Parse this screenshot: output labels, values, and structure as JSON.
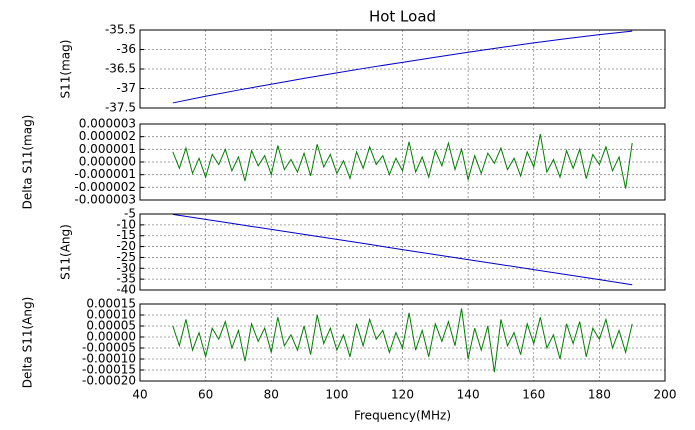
{
  "chart_data": [
    {
      "type": "line",
      "title": "Hot Load",
      "ylabel": "S11(mag)",
      "color": "#0000cc",
      "x": [
        50,
        60,
        70,
        80,
        90,
        100,
        110,
        120,
        130,
        140,
        150,
        160,
        170,
        180,
        190
      ],
      "values": [
        -37.37,
        -37.2,
        -37.04,
        -36.89,
        -36.74,
        -36.6,
        -36.46,
        -36.33,
        -36.2,
        -36.07,
        -35.95,
        -35.83,
        -35.72,
        -35.62,
        -35.53
      ],
      "xlim": [
        40,
        200
      ],
      "xticks": [
        40,
        60,
        80,
        100,
        120,
        140,
        160,
        180,
        200
      ],
      "ylim": [
        -37.5,
        -35.5
      ],
      "yticks": [
        -37.5,
        -37,
        -36.5,
        -36,
        -35.5
      ],
      "grid": true
    },
    {
      "type": "line",
      "ylabel": "Delta S11(mag)",
      "color": "#007f00",
      "x": [
        50,
        52,
        54,
        56,
        58,
        60,
        62,
        64,
        66,
        68,
        70,
        72,
        74,
        76,
        78,
        80,
        82,
        84,
        86,
        88,
        90,
        92,
        94,
        96,
        98,
        100,
        102,
        104,
        106,
        108,
        110,
        112,
        114,
        116,
        118,
        120,
        122,
        124,
        126,
        128,
        130,
        132,
        134,
        136,
        138,
        140,
        142,
        144,
        146,
        148,
        150,
        152,
        154,
        156,
        158,
        160,
        162,
        164,
        166,
        168,
        170,
        172,
        174,
        176,
        178,
        180,
        182,
        184,
        186,
        188,
        190
      ],
      "values": [
        8e-07,
        -5e-07,
        1.1e-06,
        -9e-07,
        3e-07,
        -1.2e-06,
        6e-07,
        -2e-07,
        1e-06,
        -7e-07,
        4e-07,
        -1.5e-06,
        9e-07,
        -3e-07,
        5e-07,
        -1e-06,
        1.3e-06,
        -6e-07,
        2e-07,
        -8e-07,
        7e-07,
        -1.1e-06,
        1.4e-06,
        -4e-07,
        6e-07,
        -9e-07,
        1e-07,
        -1.3e-06,
        8e-07,
        -5e-07,
        1.2e-06,
        -2e-07,
        5e-07,
        -1e-06,
        3e-07,
        -7e-07,
        1.6e-06,
        -8e-07,
        4e-07,
        -1.2e-06,
        9e-07,
        -3e-07,
        1.5e-06,
        -6e-07,
        1e-06,
        -1.4e-06,
        5e-07,
        -9e-07,
        7e-07,
        -1e-07,
        1.1e-06,
        -6e-07,
        3e-07,
        -1.1e-06,
        8e-07,
        -4e-07,
        2.2e-06,
        -8e-07,
        2e-07,
        -1.2e-06,
        9e-07,
        -5e-07,
        1e-06,
        -1.3e-06,
        6e-07,
        -2e-07,
        1.2e-06,
        -7e-07,
        4e-07,
        -2.1e-06,
        1.5e-06
      ],
      "xlim": [
        40,
        200
      ],
      "xticks": [
        40,
        60,
        80,
        100,
        120,
        140,
        160,
        180,
        200
      ],
      "ylim": [
        -3e-06,
        3e-06
      ],
      "yticks": [
        {
          "value": -3e-06,
          "label": "-0.000003"
        },
        {
          "value": -2e-06,
          "label": "-0.000002"
        },
        {
          "value": -1e-06,
          "label": "-0.000001"
        },
        {
          "value": 0,
          "label": "0.000000"
        },
        {
          "value": 1e-06,
          "label": "0.000001"
        },
        {
          "value": 2e-06,
          "label": "0.000002"
        },
        {
          "value": 3e-06,
          "label": "0.000003"
        }
      ],
      "grid": true
    },
    {
      "type": "line",
      "ylabel": "S11(Ang)",
      "color": "#0000cc",
      "x": [
        50,
        60,
        70,
        80,
        90,
        100,
        110,
        120,
        130,
        140,
        150,
        160,
        170,
        180,
        190
      ],
      "values": [
        -5.2,
        -7.5,
        -9.8,
        -12.1,
        -14.4,
        -16.7,
        -19,
        -21.4,
        -23.7,
        -26,
        -28.3,
        -30.6,
        -32.9,
        -35.2,
        -37.6
      ],
      "xlim": [
        40,
        200
      ],
      "xticks": [
        40,
        60,
        80,
        100,
        120,
        140,
        160,
        180,
        200
      ],
      "ylim": [
        -40,
        -5
      ],
      "yticks": [
        -40,
        -35,
        -30,
        -25,
        -20,
        -15,
        -10,
        -5
      ],
      "grid": true
    },
    {
      "type": "line",
      "ylabel": "Delta S11(Ang)",
      "xlabel": "Frequency(MHz)",
      "color": "#007f00",
      "x": [
        50,
        52,
        54,
        56,
        58,
        60,
        62,
        64,
        66,
        68,
        70,
        72,
        74,
        76,
        78,
        80,
        82,
        84,
        86,
        88,
        90,
        92,
        94,
        96,
        98,
        100,
        102,
        104,
        106,
        108,
        110,
        112,
        114,
        116,
        118,
        120,
        122,
        124,
        126,
        128,
        130,
        132,
        134,
        136,
        138,
        140,
        142,
        144,
        146,
        148,
        150,
        152,
        154,
        156,
        158,
        160,
        162,
        164,
        166,
        168,
        170,
        172,
        174,
        176,
        178,
        180,
        182,
        184,
        186,
        188,
        190
      ],
      "values": [
        5e-05,
        -4e-05,
        8e-05,
        -6e-05,
        2e-05,
        -9e-05,
        4e-05,
        -1e-05,
        7e-05,
        -5e-05,
        3e-05,
        -0.00011,
        6e-05,
        -2e-05,
        4e-05,
        -7e-05,
        9e-05,
        -4e-05,
        1e-05,
        -6e-05,
        5e-05,
        -8e-05,
        0.0001,
        -3e-05,
        4e-05,
        -6e-05,
        1e-05,
        -9e-05,
        6e-05,
        -4e-05,
        8e-05,
        -1e-05,
        3e-05,
        -7e-05,
        2e-05,
        -5e-05,
        0.00011,
        -6e-05,
        3e-05,
        -9e-05,
        6e-05,
        -2e-05,
        7e-05,
        -4e-05,
        0.00013,
        -0.0001,
        4e-05,
        -6e-05,
        5e-05,
        -0.00016,
        8e-05,
        -4e-05,
        2e-05,
        -8e-05,
        6e-05,
        -3e-05,
        9e-05,
        -5e-05,
        1e-05,
        -0.0001,
        6e-05,
        -3e-05,
        7e-05,
        -9e-05,
        4e-05,
        -1e-05,
        8e-05,
        -5e-05,
        3e-05,
        -7e-05,
        6e-05
      ],
      "xlim": [
        40,
        200
      ],
      "xticks": [
        40,
        60,
        80,
        100,
        120,
        140,
        160,
        180,
        200
      ],
      "ylim": [
        -0.0002,
        0.00015
      ],
      "yticks": [
        {
          "value": -0.0002,
          "label": "-0.00020"
        },
        {
          "value": -0.00015,
          "label": "-0.00015"
        },
        {
          "value": -0.0001,
          "label": "-0.00010"
        },
        {
          "value": -5e-05,
          "label": "-0.00005"
        },
        {
          "value": 0,
          "label": "0.00000"
        },
        {
          "value": 5e-05,
          "label": "0.00005"
        },
        {
          "value": 0.0001,
          "label": "0.00010"
        },
        {
          "value": 0.00015,
          "label": "0.00015"
        }
      ],
      "grid": true
    }
  ]
}
